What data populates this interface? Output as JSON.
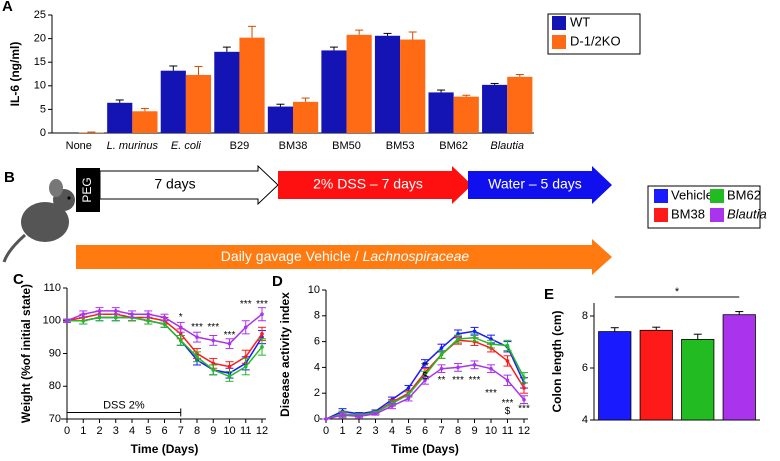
{
  "chart_data": [
    {
      "type": "bar",
      "panel_label": "A",
      "ylabel": "IL-6 (ng/ml)",
      "categories": [
        "None",
        "L. murinus",
        "E. coli",
        "B29",
        "BM38",
        "BM50",
        "BM53",
        "BM62",
        "Blautia"
      ],
      "italic": [
        false,
        true,
        true,
        false,
        false,
        false,
        false,
        false,
        true
      ],
      "series": [
        {
          "name": "WT",
          "color": "#1414b4",
          "values": [
            0,
            6.4,
            13.2,
            17.2,
            5.6,
            17.5,
            20.6,
            8.6,
            10.2
          ],
          "errors": [
            0,
            0.6,
            1.0,
            1.0,
            0.5,
            0.7,
            0.5,
            0.5,
            0.3
          ]
        },
        {
          "name": "D-1/2KO",
          "color": "#ff6a14",
          "values": [
            0.1,
            4.6,
            12.3,
            20.2,
            6.6,
            20.8,
            19.8,
            7.7,
            11.9
          ],
          "errors": [
            0.1,
            0.6,
            1.8,
            2.4,
            0.8,
            1.0,
            1.6,
            0.3,
            0.5
          ]
        }
      ],
      "ylim": [
        0,
        25
      ],
      "yticks": [
        0,
        5,
        10,
        15,
        20,
        25
      ]
    },
    {
      "type": "line",
      "panel_label": "C",
      "ylabel": "Weight (%of initial state)",
      "xlabel": "Time (Days)",
      "x": [
        0,
        1,
        2,
        3,
        4,
        5,
        6,
        7,
        8,
        9,
        10,
        11,
        12
      ],
      "series": [
        {
          "name": "Vehicle",
          "color": "#1a1aff",
          "italic": false,
          "values": [
            100,
            100,
            101,
            101,
            101,
            100,
            99,
            94,
            88,
            85,
            84,
            87,
            95
          ],
          "errors": [
            0.5,
            1,
            1,
            1,
            1,
            1,
            1,
            1.5,
            1.5,
            1.5,
            1.5,
            2,
            2
          ]
        },
        {
          "name": "BM38",
          "color": "#ff1a1a",
          "italic": false,
          "values": [
            100,
            101,
            102,
            102,
            101,
            101,
            100,
            96,
            90,
            87,
            86,
            89,
            96
          ],
          "errors": [
            0.5,
            1,
            1,
            1,
            1,
            1,
            1,
            1.5,
            1.5,
            1.5,
            1.5,
            2,
            2
          ]
        },
        {
          "name": "BM62",
          "color": "#22bb22",
          "italic": false,
          "values": [
            100,
            100,
            101,
            101,
            101,
            100,
            99,
            94,
            89,
            85,
            83,
            86,
            92
          ],
          "errors": [
            0.5,
            1,
            1,
            1,
            1,
            1,
            1,
            1.5,
            1.5,
            1.5,
            1.5,
            2.5,
            2.5
          ]
        },
        {
          "name": "Blautia",
          "color": "#aa33ee",
          "italic": true,
          "values": [
            100,
            102,
            103,
            103,
            102,
            102,
            101,
            98,
            95,
            94,
            93,
            98,
            102
          ],
          "errors": [
            0.5,
            1,
            1,
            1,
            1,
            1,
            1,
            1.5,
            1.5,
            1.5,
            1.5,
            2,
            2
          ]
        }
      ],
      "bracket": {
        "text": "DSS 2%",
        "x": [
          0,
          7
        ],
        "y": 72
      },
      "annotations": [
        {
          "text": "*",
          "x": 7,
          "y": 101
        },
        {
          "text": "***",
          "x": 8,
          "y": 98
        },
        {
          "text": "***",
          "x": 9,
          "y": 98
        },
        {
          "text": "***",
          "x": 10,
          "y": 95.6
        },
        {
          "text": "***",
          "x": 11,
          "y": 105
        },
        {
          "text": "***",
          "x": 12,
          "y": 105
        }
      ],
      "xlim": [
        0,
        12
      ],
      "xticks": [
        0,
        1,
        2,
        3,
        4,
        5,
        6,
        7,
        8,
        9,
        10,
        11,
        12
      ],
      "ylim": [
        70,
        110
      ],
      "yticks": [
        70,
        80,
        90,
        100,
        110
      ]
    },
    {
      "type": "line",
      "panel_label": "D",
      "ylabel": "Disease activity index",
      "xlabel": "Time (Days)",
      "x": [
        0,
        1,
        2,
        3,
        4,
        5,
        6,
        7,
        8,
        9,
        10,
        11,
        12
      ],
      "series": [
        {
          "color": "#1a1aff",
          "values": [
            0,
            0.6,
            0.4,
            0.6,
            1.5,
            2.4,
            4.3,
            5.5,
            6.6,
            6.8,
            6.2,
            5.6,
            2.8
          ],
          "errors": [
            0,
            0.2,
            0.1,
            0.1,
            0.2,
            0.2,
            0.3,
            0.3,
            0.3,
            0.3,
            0.3,
            0.4,
            0.4
          ]
        },
        {
          "color": "#ff1a1a",
          "values": [
            0,
            0.4,
            0.3,
            0.5,
            1.3,
            2.0,
            3.6,
            5.0,
            6.1,
            6.0,
            5.5,
            4.5,
            2.4
          ],
          "errors": [
            0,
            0.2,
            0.1,
            0.1,
            0.2,
            0.2,
            0.3,
            0.3,
            0.3,
            0.3,
            0.3,
            0.4,
            0.4
          ]
        },
        {
          "color": "#22bb22",
          "values": [
            0,
            0.4,
            0.3,
            0.5,
            1.2,
            1.9,
            3.4,
            5.0,
            6.2,
            6.3,
            5.8,
            5.7,
            3.2
          ],
          "errors": [
            0,
            0.2,
            0.1,
            0.1,
            0.2,
            0.2,
            0.3,
            0.3,
            0.3,
            0.3,
            0.3,
            0.4,
            0.4
          ]
        },
        {
          "color": "#aa33ee",
          "values": [
            0,
            0.3,
            0.2,
            0.4,
            1.0,
            1.6,
            3.0,
            3.9,
            4.0,
            4.2,
            3.9,
            3.0,
            1.5
          ],
          "errors": [
            0,
            0.2,
            0.1,
            0.1,
            0.2,
            0.2,
            0.3,
            0.3,
            0.3,
            0.3,
            0.3,
            0.4,
            0.3
          ]
        }
      ],
      "annotations": [
        {
          "text": "**",
          "x": 6,
          "y": 4.1
        },
        {
          "text": "$",
          "x": 6,
          "y": 3.3
        },
        {
          "text": "**",
          "x": 7,
          "y": 3.0
        },
        {
          "text": "***",
          "x": 8,
          "y": 3.0
        },
        {
          "text": "***",
          "x": 9,
          "y": 3.0
        },
        {
          "text": "***",
          "x": 10,
          "y": 2.0
        },
        {
          "text": "***",
          "x": 11,
          "y": 1.2
        },
        {
          "text": "$",
          "x": 11,
          "y": 0.6
        },
        {
          "text": "***",
          "x": 12,
          "y": 0.8
        }
      ],
      "xlim": [
        0,
        12
      ],
      "xticks": [
        0,
        1,
        2,
        3,
        4,
        5,
        6,
        7,
        8,
        9,
        10,
        11,
        12
      ],
      "ylim": [
        0,
        10
      ],
      "yticks": [
        0,
        2,
        4,
        6,
        8,
        10
      ]
    },
    {
      "type": "bar",
      "panel_label": "E",
      "ylabel": "Colon length (cm)",
      "categories": [
        null,
        null,
        null,
        null
      ],
      "values": [
        7.4,
        7.45,
        7.1,
        8.05
      ],
      "errors": [
        0.15,
        0.12,
        0.2,
        0.12
      ],
      "colors": [
        "#1a1aff",
        "#ff1a1a",
        "#22bb22",
        "#aa33ee"
      ],
      "significance": {
        "text": "*",
        "from": 0,
        "to": 3
      },
      "ylim": [
        4,
        8.5
      ],
      "yticks": [
        4,
        6,
        8
      ]
    }
  ],
  "diagram": {
    "panel_label": "B",
    "pretreatment": "PEG",
    "phase1": "7 days",
    "phase2": "2% DSS – 7 days",
    "phase3": "Water – 5 days",
    "gavage": "Daily gavage Vehicle /",
    "gavage_italic": "Lachnospiraceae"
  }
}
